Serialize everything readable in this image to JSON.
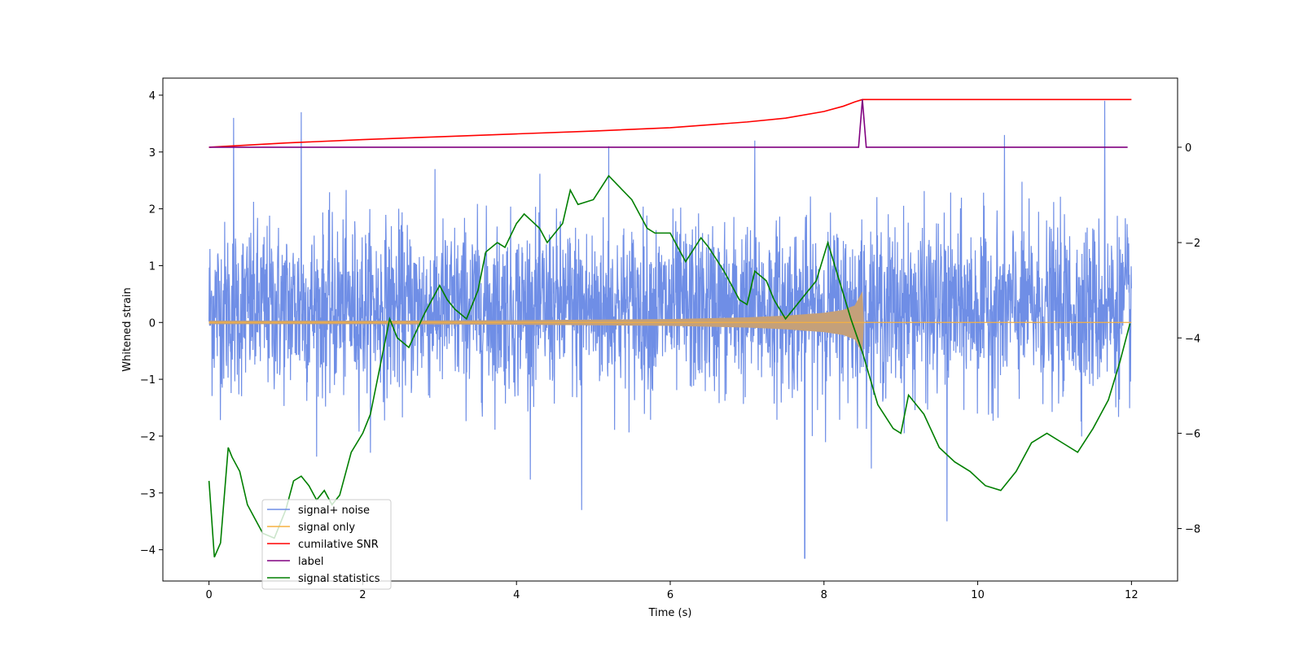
{
  "chart_data": {
    "type": "line",
    "title": "",
    "xlabel": "Time (s)",
    "ylabel": "Whitened strain",
    "y2label": "",
    "xlim": [
      -0.6,
      12.6
    ],
    "ylim": [
      -4.55,
      4.3
    ],
    "y2lim": [
      -9.1,
      1.45
    ],
    "xticks": [
      0,
      2,
      4,
      6,
      8,
      10,
      12
    ],
    "yticks": [
      -4,
      -3,
      -2,
      -1,
      0,
      1,
      2,
      3,
      4
    ],
    "y2ticks": [
      -8,
      -6,
      -4,
      -2,
      0
    ],
    "grid": false,
    "legend_position": "lower-left",
    "colors": {
      "signal_noise": "#6f8ee6",
      "signal_only": "#f5b041",
      "signal_only_fill": "#c4a07a",
      "snr": "#ff0000",
      "label": "#800080",
      "stats": "#007f00"
    },
    "legend": [
      {
        "label": "signal+ noise",
        "color": "#6f8ee6"
      },
      {
        "label": "signal only",
        "color": "#f5b041"
      },
      {
        "label": "cumilative SNR",
        "color": "#ff0000"
      },
      {
        "label": "label",
        "color": "#800080"
      },
      {
        "label": "signal statistics",
        "color": "#007f00"
      }
    ],
    "series": [
      {
        "name": "signal+ noise",
        "axis": "left",
        "description": "dense noise trace, roughly +/-1.5 with peaks to +/-4",
        "x_range": [
          0,
          12
        ],
        "noise_std": 0.75,
        "peaks": [
          [
            0.32,
            3.6
          ],
          [
            1.2,
            3.7
          ],
          [
            7.75,
            -4.15
          ],
          [
            11.65,
            3.9
          ],
          [
            10.35,
            3.3
          ],
          [
            4.85,
            -3.3
          ],
          [
            5.2,
            3.1
          ],
          [
            7.1,
            3.2
          ],
          [
            9.6,
            -3.5
          ]
        ]
      },
      {
        "name": "signal only",
        "axis": "left",
        "description": "chirp growing in amplitude until merger at 8.5 s, then zero",
        "x": [
          0,
          1,
          2,
          3,
          4,
          5,
          6,
          7,
          7.5,
          8,
          8.25,
          8.4,
          8.5,
          8.51,
          12
        ],
        "amplitude": [
          0.03,
          0.03,
          0.03,
          0.035,
          0.04,
          0.05,
          0.06,
          0.09,
          0.12,
          0.17,
          0.22,
          0.3,
          0.55,
          0,
          0
        ]
      },
      {
        "name": "cumilative SNR",
        "axis": "right",
        "x": [
          0,
          1,
          2,
          3,
          4,
          5,
          6,
          7,
          7.5,
          8,
          8.25,
          8.4,
          8.5,
          12
        ],
        "y": [
          0.0,
          0.09,
          0.16,
          0.22,
          0.28,
          0.34,
          0.41,
          0.53,
          0.61,
          0.75,
          0.86,
          0.95,
          1.0,
          1.0
        ]
      },
      {
        "name": "label",
        "axis": "right",
        "x": [
          0,
          8.45,
          8.5,
          8.55,
          11.95
        ],
        "y": [
          0,
          0,
          1,
          0,
          0
        ]
      },
      {
        "name": "signal statistics",
        "axis": "right",
        "x": [
          0,
          0.07,
          0.15,
          0.25,
          0.3,
          0.4,
          0.5,
          0.6,
          0.7,
          0.85,
          1.0,
          1.1,
          1.2,
          1.3,
          1.4,
          1.5,
          1.6,
          1.7,
          1.85,
          2.0,
          2.1,
          2.2,
          2.3,
          2.35,
          2.45,
          2.6,
          2.8,
          2.9,
          3.0,
          3.1,
          3.2,
          3.35,
          3.5,
          3.6,
          3.75,
          3.85,
          4.0,
          4.1,
          4.3,
          4.4,
          4.6,
          4.7,
          4.8,
          5.0,
          5.2,
          5.5,
          5.6,
          5.7,
          5.8,
          6.0,
          6.2,
          6.4,
          6.5,
          6.7,
          6.9,
          7.0,
          7.1,
          7.25,
          7.35,
          7.5,
          7.7,
          7.9,
          8.05,
          8.2,
          8.35,
          8.5,
          8.7,
          8.9,
          9.0,
          9.1,
          9.3,
          9.5,
          9.7,
          9.9,
          10.1,
          10.3,
          10.4,
          10.5,
          10.7,
          10.9,
          11.1,
          11.3,
          11.5,
          11.7,
          11.85,
          11.98
        ],
        "y": [
          -7.0,
          -8.6,
          -8.3,
          -6.3,
          -6.5,
          -6.8,
          -7.5,
          -7.8,
          -8.1,
          -8.2,
          -7.6,
          -7.0,
          -6.9,
          -7.1,
          -7.4,
          -7.2,
          -7.5,
          -7.3,
          -6.4,
          -6.0,
          -5.6,
          -4.8,
          -4.0,
          -3.6,
          -4.0,
          -4.2,
          -3.5,
          -3.2,
          -2.9,
          -3.2,
          -3.4,
          -3.6,
          -3.0,
          -2.2,
          -2.0,
          -2.1,
          -1.6,
          -1.4,
          -1.7,
          -2.0,
          -1.6,
          -0.9,
          -1.2,
          -1.1,
          -0.6,
          -1.1,
          -1.4,
          -1.7,
          -1.8,
          -1.8,
          -2.4,
          -1.9,
          -2.1,
          -2.6,
          -3.2,
          -3.3,
          -2.6,
          -2.8,
          -3.2,
          -3.6,
          -3.2,
          -2.8,
          -2.0,
          -2.8,
          -3.6,
          -4.3,
          -5.4,
          -5.9,
          -6.0,
          -5.2,
          -5.6,
          -6.3,
          -6.6,
          -6.8,
          -7.1,
          -7.2,
          -7.0,
          -6.8,
          -6.2,
          -6.0,
          -6.2,
          -6.4,
          -5.9,
          -5.3,
          -4.5,
          -3.7
        ]
      }
    ]
  }
}
